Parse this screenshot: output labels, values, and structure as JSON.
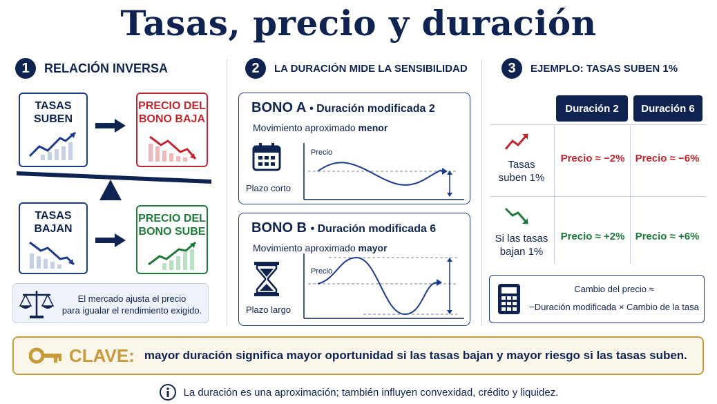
{
  "title": "Tasas, precio y duración",
  "section1": {
    "number": "1",
    "heading": "RELACIÓN INVERSA",
    "tasas_suben": [
      "TASAS",
      "SUBEN"
    ],
    "precio_baja": [
      "PRECIO DEL",
      "BONO BAJA"
    ],
    "tasas_bajan": [
      "TASAS",
      "BAJAN"
    ],
    "precio_sube": [
      "PRECIO DEL",
      "BONO SUBE"
    ],
    "note": [
      "El mercado ajusta el precio",
      "para igualar el rendimiento exigido."
    ]
  },
  "section2": {
    "number": "2",
    "heading": "LA DURACIÓN MIDE LA SENSIBILIDAD",
    "bono_a": {
      "name": "BONO A",
      "duration": "• Duración modificada 2",
      "movement_prefix": "Movimiento aproximado",
      "movement_strong": "menor",
      "chart_label": "Precio",
      "plazo": "Plazo corto"
    },
    "bono_b": {
      "name": "BONO B",
      "duration": "• Duración modificada 6",
      "movement_prefix": "Movimiento aproximado",
      "movement_strong": "mayor",
      "chart_label": "Precio",
      "plazo": "Plazo largo"
    }
  },
  "section3": {
    "number": "3",
    "heading": "EJEMPLO: TASAS SUBEN 1%",
    "columns": [
      "Duración 2",
      "Duración 6"
    ],
    "rows": [
      {
        "label": [
          "Tasas",
          "suben 1%"
        ],
        "values": [
          "Precio ≈ −2%",
          "Precio ≈ −6%"
        ],
        "color": "#c0262d"
      },
      {
        "label": [
          "Si las tasas",
          "bajan 1%"
        ],
        "values": [
          "Precio ≈ +2%",
          "Precio ≈ +6%"
        ],
        "color": "#1e7a3a"
      }
    ],
    "formula": [
      "Cambio del precio ≈",
      "−Duración modificada × Cambio de la tasa"
    ]
  },
  "key": {
    "label": "CLAVE:",
    "text": "mayor duración significa mayor oportunidad si las tasas bajan y mayor riesgo si las tasas suben."
  },
  "footer": "La duración es una aproximación; también influyen convexidad, crédito y liquidez.",
  "colors": {
    "navy": "#0f2350",
    "red": "#c0262d",
    "green": "#1e7a3a",
    "gold": "#c89a3a"
  }
}
